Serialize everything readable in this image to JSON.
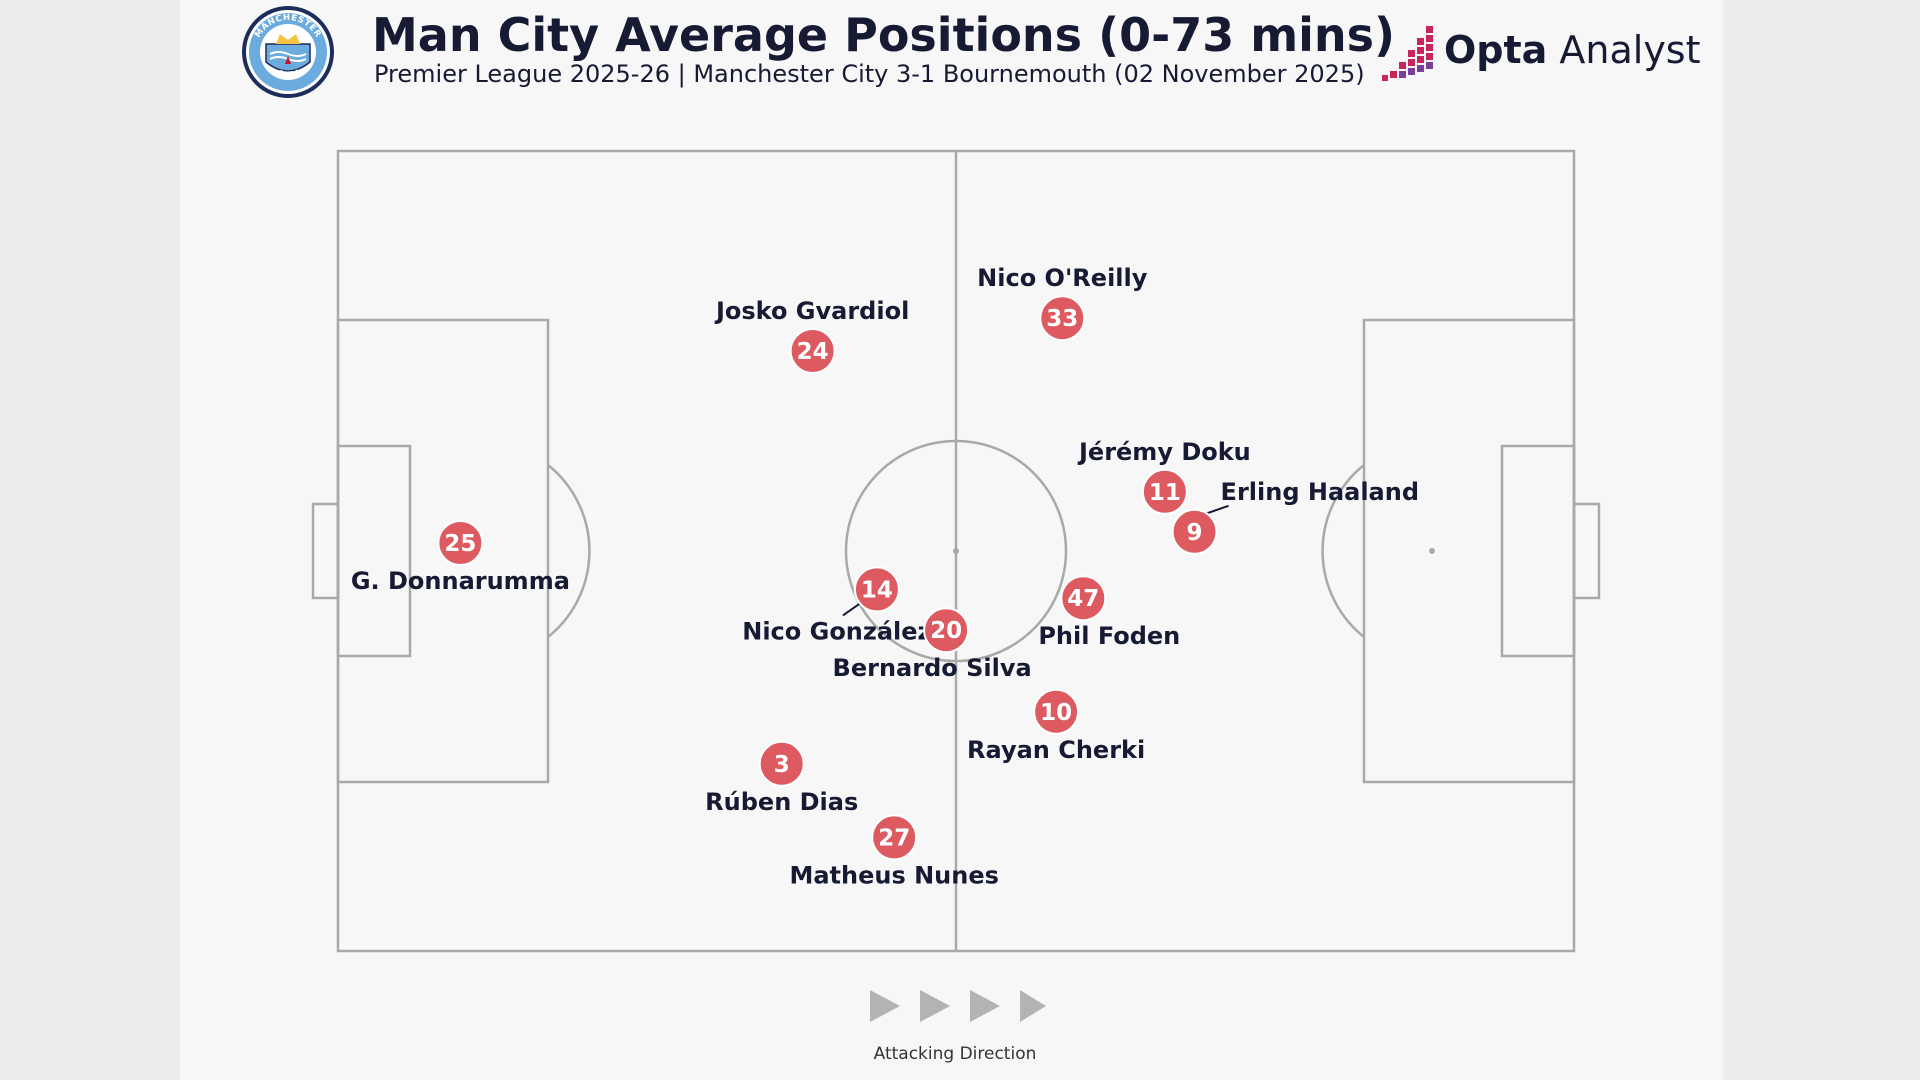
{
  "header": {
    "title": "Man City Average Positions (0-73 mins)",
    "subtitle": "Premier League 2025-26 | Manchester City 3-1 Bournemouth (02 November 2025)",
    "crest_text_top": "MANCHESTER",
    "crest_text_bottom": "CITY",
    "brand_strong": "Opta",
    "brand_rest": " Analyst"
  },
  "colors": {
    "marker": "#dc5a60",
    "pitch_line": "#a9a9a9",
    "text": "#161a33",
    "brand_accent": "#c8265a"
  },
  "chart_data": {
    "type": "scatter",
    "title": "Man City Average Positions (0-73 mins)",
    "x_range": [
      0,
      100
    ],
    "y_range": [
      0,
      100
    ],
    "attacking_direction": "left-to-right",
    "players": [
      {
        "number": "25",
        "name": "G. Donnarumma",
        "x": 9.9,
        "y": 51.0
      },
      {
        "number": "24",
        "name": "Josko Gvardiol",
        "x": 38.4,
        "y": 75.0
      },
      {
        "number": "33",
        "name": "Nico O'Reilly",
        "x": 58.6,
        "y": 79.1
      },
      {
        "number": "11",
        "name": "Jérémy Doku",
        "x": 66.9,
        "y": 57.4
      },
      {
        "number": "9",
        "name": "Erling Haaland",
        "x": 69.3,
        "y": 52.4
      },
      {
        "number": "14",
        "name": "Nico González",
        "x": 43.6,
        "y": 45.2
      },
      {
        "number": "20",
        "name": "Bernardo Silva",
        "x": 49.2,
        "y": 40.1
      },
      {
        "number": "47",
        "name": "Phil Foden",
        "x": 60.3,
        "y": 44.1
      },
      {
        "number": "10",
        "name": "Rayan Cherki",
        "x": 58.1,
        "y": 29.9
      },
      {
        "number": "3",
        "name": "Rúben Dias",
        "x": 35.9,
        "y": 23.4
      },
      {
        "number": "27",
        "name": "Matheus Nunes",
        "x": 45.0,
        "y": 14.2
      }
    ]
  },
  "footer": {
    "direction_label": "Attacking Direction"
  }
}
